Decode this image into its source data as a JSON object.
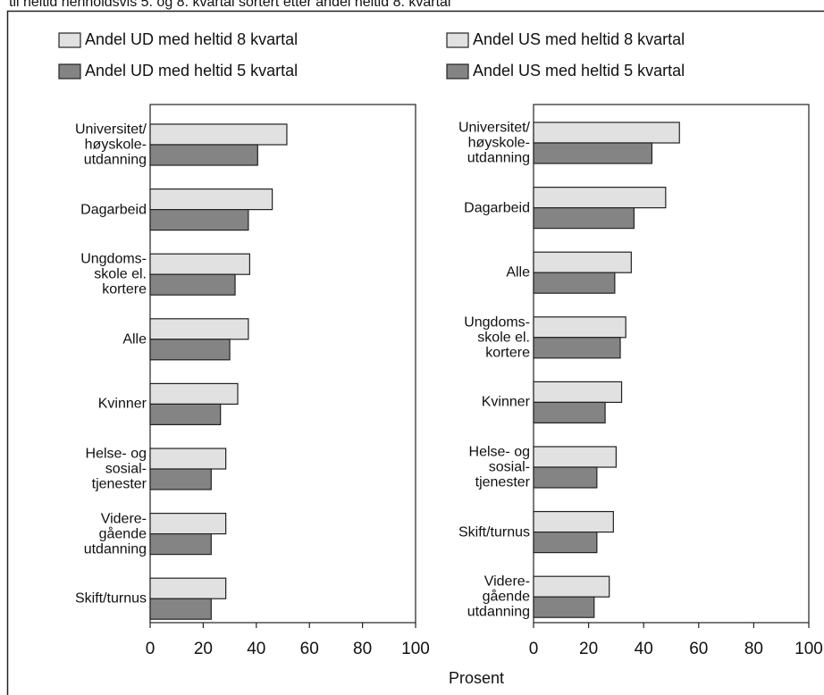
{
  "caption": "til heltid henholdsvis 5. og 8. kvartal sortert etter andel heltid 8. kvartal",
  "xlabel": "Prosent",
  "chart_data": [
    {
      "type": "hbar",
      "categories": [
        "Universitet/\nhøyskole-\nutdanning",
        "Dagarbeid",
        "Ungdoms-\nskole el.\nkortere",
        "Alle",
        "Kvinner",
        "Helse- og\nsosial-\ntjenester",
        "Videre-\ngående\nutdanning",
        "Skift/turnus"
      ],
      "series": [
        {
          "name": "Andel UD med heltid 8 kvartal",
          "color": "#e1e1e1",
          "values": [
            51.5,
            46,
            37.5,
            37,
            33,
            28.5,
            28.5,
            28.5
          ]
        },
        {
          "name": "Andel UD med heltid 5 kvartal",
          "color": "#848484",
          "values": [
            40.5,
            37,
            32,
            30,
            26.5,
            23,
            23,
            23
          ]
        }
      ],
      "xlim": [
        0,
        100
      ],
      "xticks": [
        0,
        20,
        40,
        60,
        80,
        100
      ]
    },
    {
      "type": "hbar",
      "categories": [
        "Universitet/\nhøyskole-\nutdanning",
        "Dagarbeid",
        "Alle",
        "Ungdoms-\nskole el.\nkortere",
        "Kvinner",
        "Helse- og\nsosial-\ntjenester",
        "Skift/turnus",
        "Videre-\ngående\nutdanning"
      ],
      "series": [
        {
          "name": "Andel US med heltid 8 kvartal",
          "color": "#e1e1e1",
          "values": [
            53,
            48,
            35.5,
            33.5,
            32,
            30,
            29,
            27.5
          ]
        },
        {
          "name": "Andel US med heltid 5 kvartal",
          "color": "#848484",
          "values": [
            43,
            36.5,
            29.5,
            31.5,
            26,
            23,
            23,
            22
          ]
        }
      ],
      "xlim": [
        0,
        100
      ],
      "xticks": [
        0,
        20,
        40,
        60,
        80,
        100
      ]
    }
  ]
}
